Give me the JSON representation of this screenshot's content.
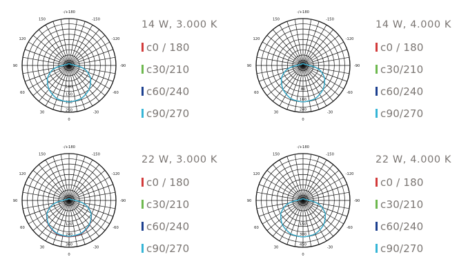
{
  "chart_data": [
    {
      "type": "polar-line",
      "title": "14 W, 3.000 K",
      "angle_labels": [
        "-/+180",
        "150",
        "120",
        "90",
        "60",
        "30",
        "0",
        "-30",
        "-60",
        "-90",
        "-120",
        "-150"
      ],
      "radial_labels": [
        "100",
        "150",
        "200",
        "250"
      ],
      "series": [
        {
          "name": "c0 / 180",
          "color": "#d23a3a",
          "values": [
            {
              "angle": 0,
              "intensity": 272
            },
            {
              "angle": 20,
              "intensity": 264
            },
            {
              "angle": 40,
              "intensity": 233
            },
            {
              "angle": 60,
              "intensity": 185
            },
            {
              "angle": 75,
              "intensity": 128
            },
            {
              "angle": 90,
              "intensity": 42
            },
            {
              "angle": 110,
              "intensity": 16
            },
            {
              "angle": 180,
              "intensity": 12
            }
          ]
        },
        {
          "name": "c30/210",
          "color": "#6db84e",
          "values": [
            {
              "angle": 0,
              "intensity": 272
            },
            {
              "angle": 20,
              "intensity": 264
            },
            {
              "angle": 40,
              "intensity": 233
            },
            {
              "angle": 60,
              "intensity": 185
            },
            {
              "angle": 75,
              "intensity": 128
            },
            {
              "angle": 90,
              "intensity": 42
            },
            {
              "angle": 110,
              "intensity": 16
            },
            {
              "angle": 180,
              "intensity": 12
            }
          ]
        },
        {
          "name": "c60/240",
          "color": "#1c3f8f",
          "values": [
            {
              "angle": 0,
              "intensity": 272
            },
            {
              "angle": 20,
              "intensity": 264
            },
            {
              "angle": 40,
              "intensity": 233
            },
            {
              "angle": 60,
              "intensity": 185
            },
            {
              "angle": 75,
              "intensity": 128
            },
            {
              "angle": 90,
              "intensity": 42
            },
            {
              "angle": 110,
              "intensity": 16
            },
            {
              "angle": 180,
              "intensity": 12
            }
          ]
        },
        {
          "name": "c90/270",
          "color": "#35b5d6",
          "values": [
            {
              "angle": 0,
              "intensity": 272
            },
            {
              "angle": 20,
              "intensity": 264
            },
            {
              "angle": 40,
              "intensity": 233
            },
            {
              "angle": 60,
              "intensity": 185
            },
            {
              "angle": 75,
              "intensity": 128
            },
            {
              "angle": 90,
              "intensity": 42
            },
            {
              "angle": 110,
              "intensity": 16
            },
            {
              "angle": 180,
              "intensity": 12
            }
          ]
        }
      ]
    },
    {
      "type": "polar-line",
      "title": "14 W, 4.000 K",
      "angle_labels": [
        "-/+180",
        "150",
        "120",
        "90",
        "60",
        "30",
        "0",
        "-30",
        "-60",
        "-90",
        "-120",
        "-150"
      ],
      "radial_labels": [
        "80",
        "160",
        "240"
      ],
      "series": [
        {
          "name": "c0 / 180",
          "color": "#d23a3a",
          "values": [
            {
              "angle": 0,
              "intensity": 250
            },
            {
              "angle": 20,
              "intensity": 243
            },
            {
              "angle": 40,
              "intensity": 214
            },
            {
              "angle": 60,
              "intensity": 170
            },
            {
              "angle": 75,
              "intensity": 118
            },
            {
              "angle": 90,
              "intensity": 40
            },
            {
              "angle": 110,
              "intensity": 15
            },
            {
              "angle": 180,
              "intensity": 11
            }
          ]
        },
        {
          "name": "c30/210",
          "color": "#6db84e",
          "values": [
            {
              "angle": 0,
              "intensity": 250
            },
            {
              "angle": 20,
              "intensity": 243
            },
            {
              "angle": 40,
              "intensity": 214
            },
            {
              "angle": 60,
              "intensity": 170
            },
            {
              "angle": 75,
              "intensity": 118
            },
            {
              "angle": 90,
              "intensity": 40
            },
            {
              "angle": 110,
              "intensity": 15
            },
            {
              "angle": 180,
              "intensity": 11
            }
          ]
        },
        {
          "name": "c60/240",
          "color": "#1c3f8f",
          "values": [
            {
              "angle": 0,
              "intensity": 250
            },
            {
              "angle": 20,
              "intensity": 243
            },
            {
              "angle": 40,
              "intensity": 214
            },
            {
              "angle": 60,
              "intensity": 170
            },
            {
              "angle": 75,
              "intensity": 118
            },
            {
              "angle": 90,
              "intensity": 40
            },
            {
              "angle": 110,
              "intensity": 15
            },
            {
              "angle": 180,
              "intensity": 11
            }
          ]
        },
        {
          "name": "c90/270",
          "color": "#35b5d6",
          "values": [
            {
              "angle": 0,
              "intensity": 250
            },
            {
              "angle": 20,
              "intensity": 243
            },
            {
              "angle": 40,
              "intensity": 214
            },
            {
              "angle": 60,
              "intensity": 170
            },
            {
              "angle": 75,
              "intensity": 118
            },
            {
              "angle": 90,
              "intensity": 40
            },
            {
              "angle": 110,
              "intensity": 15
            },
            {
              "angle": 180,
              "intensity": 11
            }
          ]
        }
      ]
    },
    {
      "type": "polar-line",
      "title": "22 W, 3.000 K",
      "angle_labels": [
        "-/+180",
        "150",
        "120",
        "90",
        "60",
        "30",
        "0",
        "-30",
        "-60",
        "-90",
        "-120",
        "-150"
      ],
      "radial_labels": [
        "120",
        "240",
        "360"
      ],
      "series": [
        {
          "name": "c0 / 180",
          "color": "#d23a3a",
          "values": [
            {
              "angle": 0,
              "intensity": 425
            },
            {
              "angle": 20,
              "intensity": 416
            },
            {
              "angle": 40,
              "intensity": 375
            },
            {
              "angle": 60,
              "intensity": 300
            },
            {
              "angle": 75,
              "intensity": 205
            },
            {
              "angle": 90,
              "intensity": 70
            },
            {
              "angle": 110,
              "intensity": 26
            },
            {
              "angle": 180,
              "intensity": 18
            }
          ]
        },
        {
          "name": "c30/210",
          "color": "#6db84e",
          "values": [
            {
              "angle": 0,
              "intensity": 420
            },
            {
              "angle": 20,
              "intensity": 411
            },
            {
              "angle": 40,
              "intensity": 371
            },
            {
              "angle": 60,
              "intensity": 297
            },
            {
              "angle": 75,
              "intensity": 203
            },
            {
              "angle": 90,
              "intensity": 69
            },
            {
              "angle": 110,
              "intensity": 26
            },
            {
              "angle": 180,
              "intensity": 18
            }
          ]
        },
        {
          "name": "c60/240",
          "color": "#1c3f8f",
          "values": [
            {
              "angle": 0,
              "intensity": 420
            },
            {
              "angle": 20,
              "intensity": 411
            },
            {
              "angle": 40,
              "intensity": 371
            },
            {
              "angle": 60,
              "intensity": 297
            },
            {
              "angle": 75,
              "intensity": 203
            },
            {
              "angle": 90,
              "intensity": 69
            },
            {
              "angle": 110,
              "intensity": 26
            },
            {
              "angle": 180,
              "intensity": 18
            }
          ]
        },
        {
          "name": "c90/270",
          "color": "#35b5d6",
          "values": [
            {
              "angle": 0,
              "intensity": 418
            },
            {
              "angle": 20,
              "intensity": 408
            },
            {
              "angle": 40,
              "intensity": 368
            },
            {
              "angle": 60,
              "intensity": 295
            },
            {
              "angle": 75,
              "intensity": 201
            },
            {
              "angle": 90,
              "intensity": 68
            },
            {
              "angle": 110,
              "intensity": 25
            },
            {
              "angle": 180,
              "intensity": 18
            }
          ]
        }
      ]
    },
    {
      "type": "polar-line",
      "title": "22 W, 4.000 K",
      "angle_labels": [
        "-/+180",
        "150",
        "120",
        "90",
        "60",
        "30",
        "0",
        "-30",
        "-60",
        "-90",
        "-120",
        "-150"
      ],
      "radial_labels": [
        "150",
        "300",
        "450"
      ],
      "series": [
        {
          "name": "c0 / 180",
          "color": "#d23a3a",
          "values": [
            {
              "angle": 0,
              "intensity": 450
            },
            {
              "angle": 20,
              "intensity": 440
            },
            {
              "angle": 40,
              "intensity": 395
            },
            {
              "angle": 60,
              "intensity": 315
            },
            {
              "angle": 75,
              "intensity": 215
            },
            {
              "angle": 90,
              "intensity": 72
            },
            {
              "angle": 110,
              "intensity": 27
            },
            {
              "angle": 180,
              "intensity": 19
            }
          ]
        },
        {
          "name": "c30/210",
          "color": "#6db84e",
          "values": [
            {
              "angle": 0,
              "intensity": 450
            },
            {
              "angle": 20,
              "intensity": 440
            },
            {
              "angle": 40,
              "intensity": 395
            },
            {
              "angle": 60,
              "intensity": 315
            },
            {
              "angle": 75,
              "intensity": 215
            },
            {
              "angle": 90,
              "intensity": 72
            },
            {
              "angle": 110,
              "intensity": 27
            },
            {
              "angle": 180,
              "intensity": 19
            }
          ]
        },
        {
          "name": "c60/240",
          "color": "#1c3f8f",
          "values": [
            {
              "angle": 0,
              "intensity": 450
            },
            {
              "angle": 20,
              "intensity": 440
            },
            {
              "angle": 40,
              "intensity": 395
            },
            {
              "angle": 60,
              "intensity": 315
            },
            {
              "angle": 75,
              "intensity": 215
            },
            {
              "angle": 90,
              "intensity": 72
            },
            {
              "angle": 110,
              "intensity": 27
            },
            {
              "angle": 180,
              "intensity": 19
            }
          ]
        },
        {
          "name": "c90/270",
          "color": "#35b5d6",
          "values": [
            {
              "angle": 0,
              "intensity": 450
            },
            {
              "angle": 20,
              "intensity": 440
            },
            {
              "angle": 40,
              "intensity": 395
            },
            {
              "angle": 60,
              "intensity": 315
            },
            {
              "angle": 75,
              "intensity": 215
            },
            {
              "angle": 90,
              "intensity": 72
            },
            {
              "angle": 110,
              "intensity": 27
            },
            {
              "angle": 180,
              "intensity": 19
            }
          ]
        }
      ]
    }
  ]
}
